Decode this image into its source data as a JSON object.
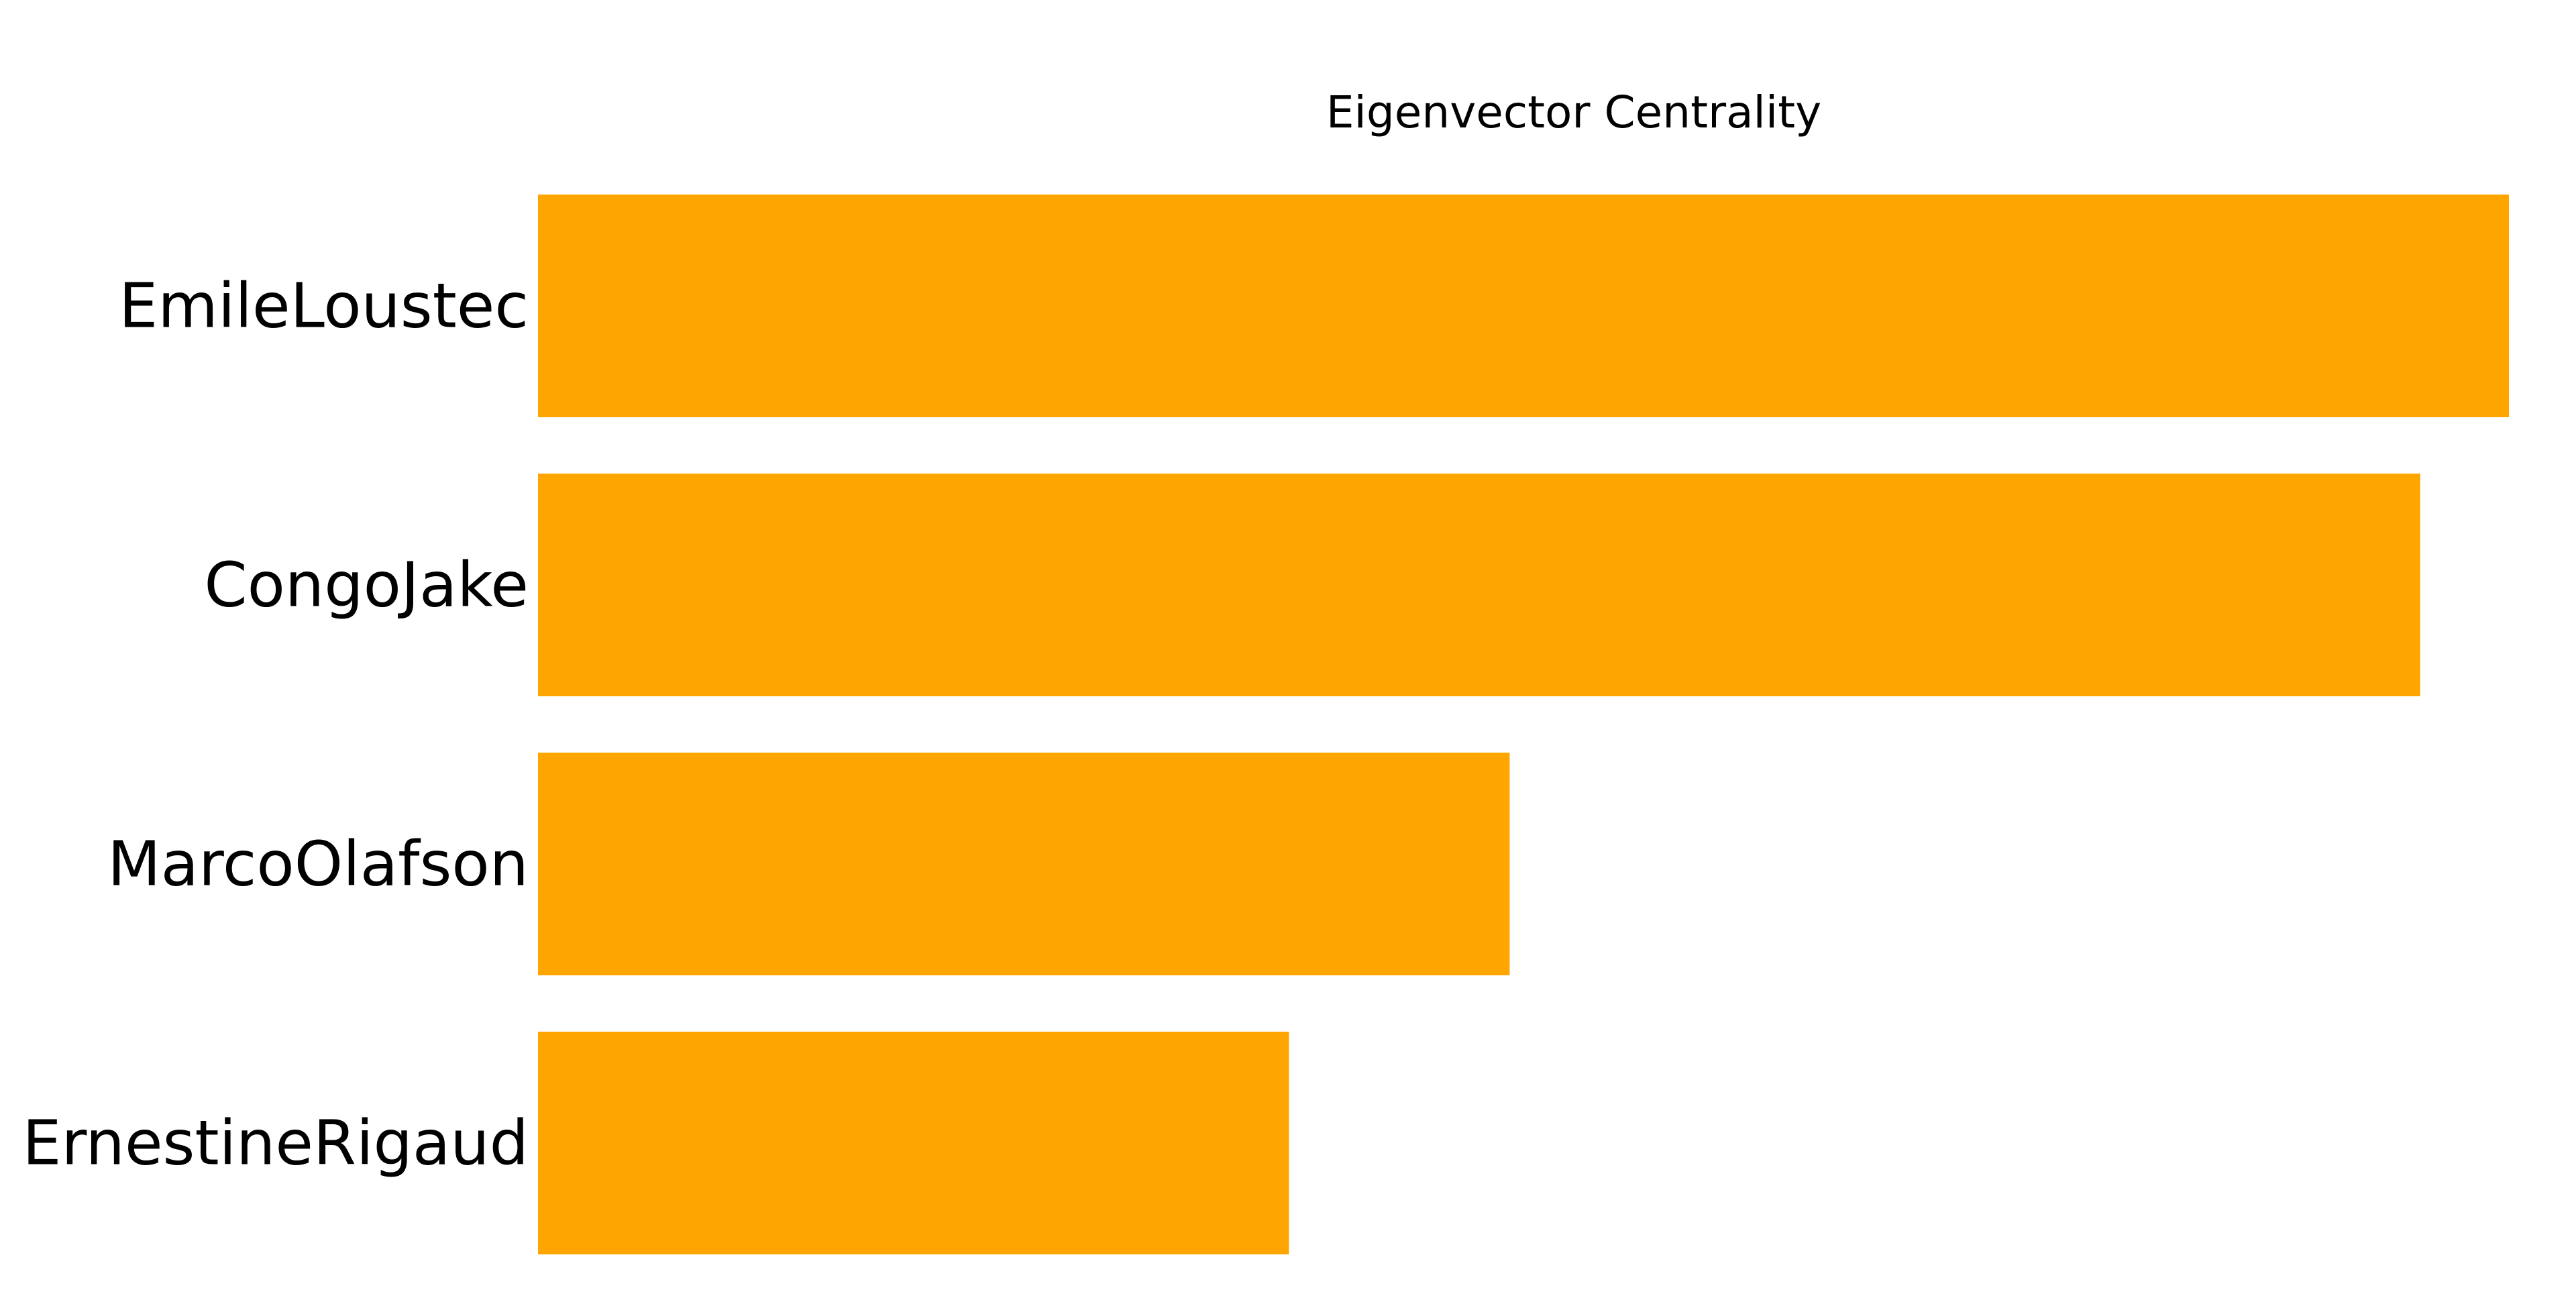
{
  "chart_data": {
    "type": "bar",
    "orientation": "horizontal",
    "title": "Eigenvector Centrality",
    "xlabel": "",
    "ylabel": "",
    "categories": [
      "EmileLoustec",
      "CongoJake",
      "MarcoOlafson",
      "ErnestineRigaud"
    ],
    "values": [
      1.0,
      0.955,
      0.493,
      0.381
    ],
    "xlim": [
      0,
      1.0
    ],
    "bar_color": "#FFA500",
    "grid": false,
    "axes_visible": false,
    "legend": "none"
  }
}
